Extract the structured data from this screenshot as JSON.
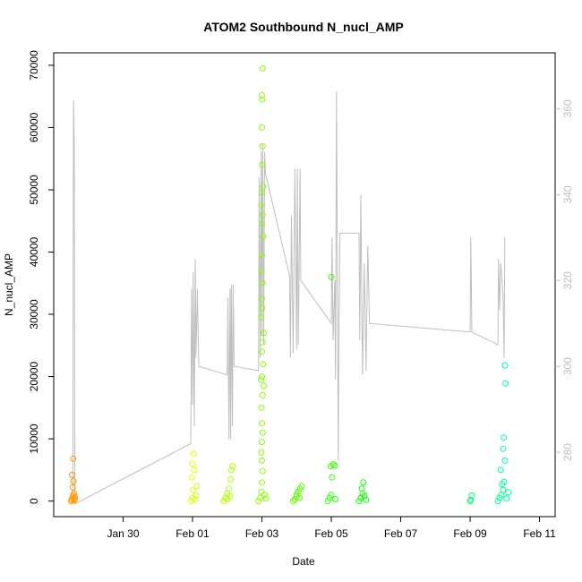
{
  "chart_data": {
    "type": "scatter",
    "title": "ATOM2 Southbound N_nucl_AMP",
    "xlabel": "Date",
    "ylabel": "N_nucl_AMP",
    "x_ticks": [
      "Jan 30",
      "Feb 01",
      "Feb 03",
      "Feb 05",
      "Feb 07",
      "Feb 09",
      "Feb 11"
    ],
    "x_tick_values": [
      1.5,
      3.5,
      5.5,
      7.5,
      9.5,
      11.5,
      13.5
    ],
    "xlim": [
      -0.5,
      13.95
    ],
    "ylim": [
      -2500,
      72000
    ],
    "y_ticks": [
      0,
      10000,
      20000,
      30000,
      40000,
      50000,
      60000,
      70000
    ],
    "right_axis": {
      "ylim": [
        265,
        373
      ],
      "ticks": [
        280,
        300,
        320,
        340,
        360
      ],
      "color": "#bebebe"
    },
    "series": [
      {
        "marker": "open-circle",
        "color_scale": "rainbow",
        "points": [
          [
            0.0,
            0
          ],
          [
            0.02,
            200
          ],
          [
            0.04,
            500
          ],
          [
            0.06,
            900
          ],
          [
            0.08,
            1200
          ],
          [
            0.1,
            300
          ],
          [
            0.05,
            2200
          ],
          [
            0.07,
            3200
          ],
          [
            0.03,
            4200
          ],
          [
            0.06,
            6800
          ],
          [
            0.09,
            100
          ],
          [
            0.11,
            600
          ],
          [
            3.45,
            0
          ],
          [
            3.5,
            500
          ],
          [
            3.52,
            1800
          ],
          [
            3.48,
            3800
          ],
          [
            3.55,
            5000
          ],
          [
            3.5,
            6000
          ],
          [
            3.53,
            7600
          ],
          [
            3.58,
            200
          ],
          [
            3.62,
            2400
          ],
          [
            3.6,
            900
          ],
          [
            4.4,
            0
          ],
          [
            4.45,
            500
          ],
          [
            4.5,
            1200
          ],
          [
            4.55,
            2000
          ],
          [
            4.6,
            3500
          ],
          [
            4.62,
            5000
          ],
          [
            4.65,
            5600
          ],
          [
            4.5,
            300
          ],
          [
            4.58,
            800
          ],
          [
            5.4,
            0
          ],
          [
            5.45,
            500
          ],
          [
            5.48,
            1500
          ],
          [
            5.5,
            3000
          ],
          [
            5.52,
            4800
          ],
          [
            5.5,
            6500
          ],
          [
            5.48,
            7800
          ],
          [
            5.5,
            9500
          ],
          [
            5.52,
            11000
          ],
          [
            5.5,
            12500
          ],
          [
            5.49,
            15000
          ],
          [
            5.52,
            17000
          ],
          [
            5.55,
            18500
          ],
          [
            5.48,
            19500
          ],
          [
            5.5,
            20000
          ],
          [
            5.53,
            22000
          ],
          [
            5.5,
            24000
          ],
          [
            5.52,
            25500
          ],
          [
            5.55,
            27000
          ],
          [
            5.48,
            29500
          ],
          [
            5.51,
            31000
          ],
          [
            5.5,
            32500
          ],
          [
            5.52,
            35000
          ],
          [
            5.49,
            37000
          ],
          [
            5.5,
            39500
          ],
          [
            5.53,
            42500
          ],
          [
            5.5,
            44500
          ],
          [
            5.52,
            46000
          ],
          [
            5.48,
            47500
          ],
          [
            5.5,
            49500
          ],
          [
            5.53,
            50500
          ],
          [
            5.5,
            54000
          ],
          [
            5.52,
            57000
          ],
          [
            5.5,
            60000
          ],
          [
            5.51,
            64500
          ],
          [
            5.5,
            65200
          ],
          [
            5.52,
            69500
          ],
          [
            5.62,
            400
          ],
          [
            5.58,
            1000
          ],
          [
            6.4,
            0
          ],
          [
            6.45,
            300
          ],
          [
            6.5,
            800
          ],
          [
            6.55,
            1500
          ],
          [
            6.6,
            2000
          ],
          [
            6.65,
            2400
          ],
          [
            6.5,
            1100
          ],
          [
            6.58,
            500
          ],
          [
            7.4,
            0
          ],
          [
            7.45,
            500
          ],
          [
            7.5,
            1000
          ],
          [
            7.52,
            3800
          ],
          [
            7.48,
            5600
          ],
          [
            7.55,
            5900
          ],
          [
            7.6,
            5700
          ],
          [
            7.5,
            36000
          ],
          [
            7.62,
            300
          ],
          [
            8.3,
            0
          ],
          [
            8.35,
            500
          ],
          [
            8.4,
            1200
          ],
          [
            8.38,
            2000
          ],
          [
            8.42,
            3000
          ],
          [
            8.45,
            800
          ],
          [
            8.5,
            200
          ],
          [
            11.5,
            0
          ],
          [
            11.52,
            200
          ],
          [
            11.55,
            900
          ],
          [
            12.3,
            0
          ],
          [
            12.35,
            500
          ],
          [
            12.4,
            1000
          ],
          [
            12.45,
            1800
          ],
          [
            12.42,
            2700
          ],
          [
            12.48,
            3100
          ],
          [
            12.38,
            5000
          ],
          [
            12.5,
            6500
          ],
          [
            12.45,
            8400
          ],
          [
            12.47,
            10200
          ],
          [
            12.52,
            18900
          ],
          [
            12.5,
            21800
          ],
          [
            12.55,
            400
          ],
          [
            12.6,
            1400
          ]
        ]
      },
      {
        "name": "",
        "axis": "right",
        "type": "line",
        "color": "#bebebe",
        "points": [
          [
            0.05,
            268
          ],
          [
            0.07,
            362
          ],
          [
            0.09,
            352
          ],
          [
            0.11,
            270
          ],
          [
            0.12,
            268
          ],
          [
            3.45,
            282
          ],
          [
            3.47,
            318
          ],
          [
            3.5,
            291
          ],
          [
            3.52,
            322
          ],
          [
            3.55,
            286
          ],
          [
            3.58,
            325
          ],
          [
            3.6,
            302
          ],
          [
            3.62,
            310
          ],
          [
            3.64,
            318
          ],
          [
            3.68,
            300
          ],
          [
            4.5,
            298
          ],
          [
            4.52,
            316
          ],
          [
            4.55,
            283
          ],
          [
            4.58,
            318
          ],
          [
            4.6,
            283
          ],
          [
            4.62,
            319
          ],
          [
            4.65,
            286
          ],
          [
            4.67,
            319
          ],
          [
            4.7,
            300
          ],
          [
            5.4,
            299
          ],
          [
            5.42,
            344
          ],
          [
            5.45,
            302
          ],
          [
            5.48,
            350
          ],
          [
            5.5,
            307
          ],
          [
            5.52,
            352
          ],
          [
            5.55,
            305
          ],
          [
            5.58,
            350
          ],
          [
            5.6,
            345
          ],
          [
            6.3,
            321
          ],
          [
            6.32,
            302
          ],
          [
            6.35,
            335
          ],
          [
            6.4,
            303
          ],
          [
            6.45,
            346
          ],
          [
            6.5,
            304
          ],
          [
            6.52,
            346
          ],
          [
            6.55,
            305
          ],
          [
            6.6,
            346
          ],
          [
            6.62,
            320
          ],
          [
            7.5,
            310
          ],
          [
            7.52,
            330
          ],
          [
            7.55,
            306
          ],
          [
            7.6,
            320
          ],
          [
            7.62,
            297
          ],
          [
            7.65,
            364
          ],
          [
            7.7,
            278
          ],
          [
            7.72,
            310
          ],
          [
            7.75,
            331
          ],
          [
            8.3,
            331
          ],
          [
            8.32,
            306
          ],
          [
            8.35,
            340
          ],
          [
            8.4,
            298
          ],
          [
            8.45,
            324
          ],
          [
            8.5,
            299
          ],
          [
            8.55,
            328
          ],
          [
            8.6,
            310
          ],
          [
            11.5,
            308
          ],
          [
            11.52,
            330
          ],
          [
            11.55,
            308
          ],
          [
            12.3,
            305
          ],
          [
            12.32,
            325
          ],
          [
            12.35,
            313
          ],
          [
            12.38,
            324
          ],
          [
            12.4,
            322
          ],
          [
            12.45,
            316
          ],
          [
            12.48,
            302
          ],
          [
            12.5,
            330
          ]
        ]
      }
    ]
  }
}
